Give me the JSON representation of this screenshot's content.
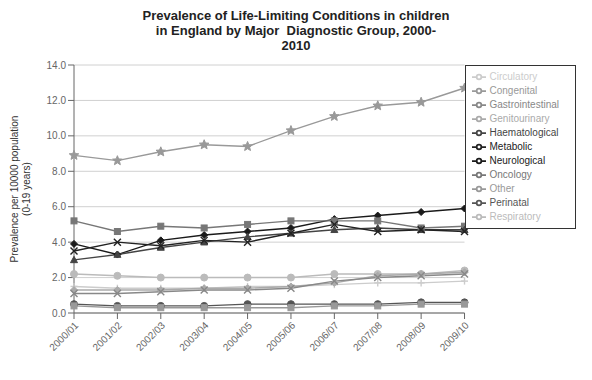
{
  "chart_data": {
    "type": "line",
    "title": "Prevalence of Life-Limiting Conditions in children\nin England by Major  Diagnostic Group, 2000-\n2010",
    "ylabel": "Prevalence per 10000 population\n(0-19 years)",
    "categories": [
      "2000/01",
      "2001/02",
      "2002/03",
      "2003/04",
      "2004/05",
      "2005/06",
      "2006/07",
      "2007/08",
      "2008/09",
      "2009/10"
    ],
    "ylim": [
      0.0,
      14.0
    ],
    "yticks": [
      {
        "value": 0.0,
        "label": "0.0"
      },
      {
        "value": 2.0,
        "label": "2.0"
      },
      {
        "value": 4.0,
        "label": "4.0"
      },
      {
        "value": 6.0,
        "label": "6.0"
      },
      {
        "value": 8.0,
        "label": "8.0"
      },
      {
        "value": 10.0,
        "label": "10.0"
      },
      {
        "value": 12.0,
        "label": "12.0"
      },
      {
        "value": 14.0,
        "label": "14.0"
      }
    ],
    "grid": true,
    "legend": "right",
    "series": [
      {
        "name": "Neurological",
        "color": "#1a1a1a",
        "marker": "diamond",
        "values": [
          3.9,
          3.3,
          4.1,
          4.4,
          4.6,
          4.8,
          5.3,
          5.5,
          5.7,
          5.9
        ]
      },
      {
        "name": "Oncology",
        "color": "#777777",
        "marker": "square",
        "values": [
          5.2,
          4.6,
          4.9,
          4.8,
          5.0,
          5.2,
          5.2,
          5.2,
          4.8,
          4.9
        ]
      },
      {
        "name": "Haematological",
        "color": "#444444",
        "marker": "triangle",
        "values": [
          3.0,
          3.3,
          3.7,
          4.0,
          4.3,
          4.5,
          4.7,
          4.8,
          4.7,
          4.7
        ]
      },
      {
        "name": "Metabolic",
        "color": "#222222",
        "marker": "x",
        "values": [
          3.5,
          4.0,
          3.8,
          4.1,
          4.0,
          4.5,
          5.0,
          4.6,
          4.7,
          4.6
        ]
      },
      {
        "name": "Congenital",
        "color": "#999999",
        "marker": "star",
        "values": [
          8.9,
          8.6,
          9.1,
          9.5,
          9.4,
          10.3,
          11.1,
          11.7,
          11.9,
          12.7
        ]
      },
      {
        "name": "Respiratory",
        "color": "#bbbbbb",
        "marker": "circle",
        "values": [
          2.2,
          2.1,
          2.0,
          2.0,
          2.0,
          2.0,
          2.2,
          2.2,
          2.2,
          2.4
        ]
      },
      {
        "name": "Circulatory",
        "color": "#cccccc",
        "marker": "plus",
        "values": [
          1.5,
          1.4,
          1.4,
          1.4,
          1.5,
          1.5,
          1.6,
          1.7,
          1.7,
          1.8
        ]
      },
      {
        "name": "Genitourinary",
        "color": "#aaaaaa",
        "marker": "diamond",
        "values": [
          1.3,
          1.3,
          1.3,
          1.4,
          1.4,
          1.5,
          1.7,
          2.1,
          2.2,
          2.3
        ]
      },
      {
        "name": "Gastrointestinal",
        "color": "#888888",
        "marker": "x",
        "values": [
          1.1,
          1.1,
          1.2,
          1.3,
          1.3,
          1.4,
          1.8,
          2.0,
          2.1,
          2.2
        ]
      },
      {
        "name": "Perinatal",
        "color": "#555555",
        "marker": "circle",
        "values": [
          0.5,
          0.4,
          0.4,
          0.4,
          0.5,
          0.5,
          0.5,
          0.5,
          0.6,
          0.6
        ]
      },
      {
        "name": "Other",
        "color": "#999999",
        "marker": "square",
        "values": [
          0.4,
          0.3,
          0.3,
          0.3,
          0.3,
          0.3,
          0.4,
          0.4,
          0.5,
          0.5
        ]
      }
    ]
  }
}
